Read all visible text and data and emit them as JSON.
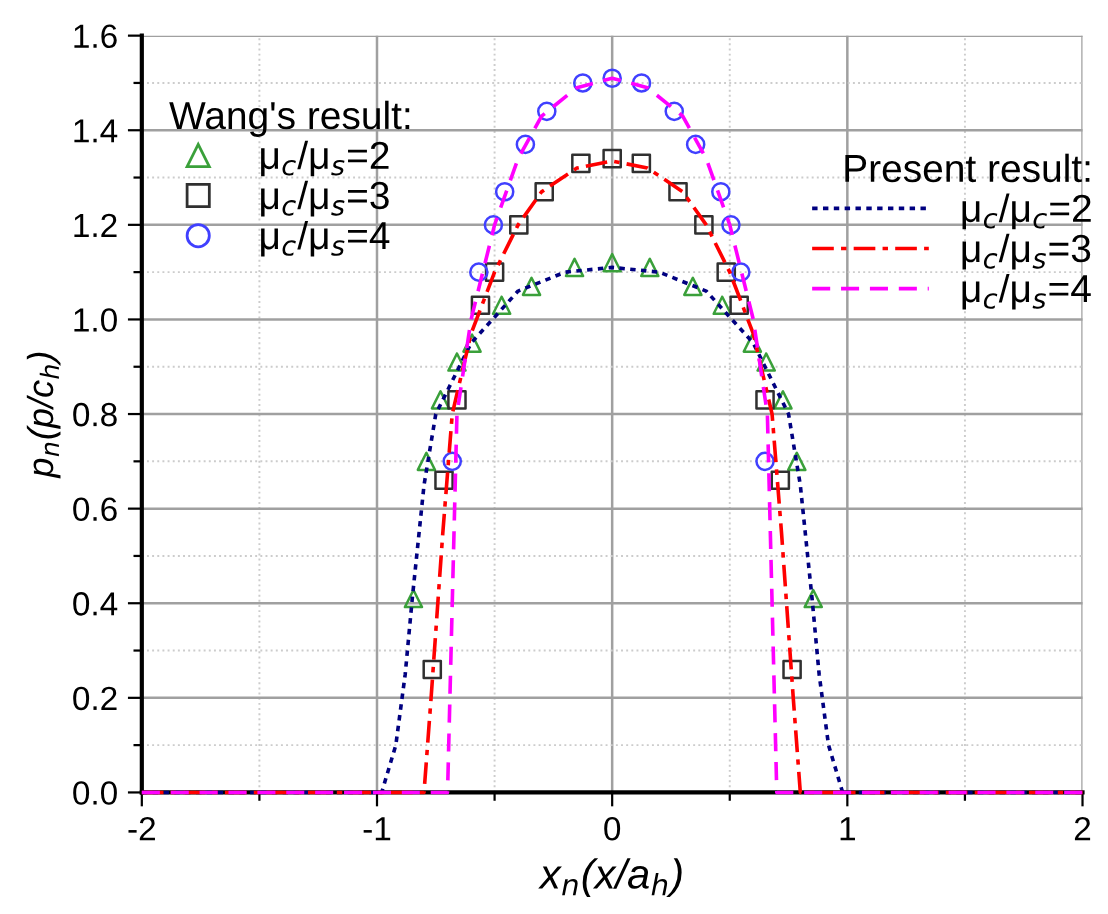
{
  "chart_data": {
    "type": "line",
    "xlabel": "x$_{n}$(x/a$_{h}$)",
    "ylabel": "p$_{n}$(p/c$_{h}$)",
    "annotations": [
      "Wang's result:",
      "Present result:"
    ],
    "xlim": [
      -2,
      2
    ],
    "ylim": [
      0,
      1.6
    ],
    "xticks": [
      -2,
      {
        "value": -1.5,
        "label": null
      },
      -1,
      {
        "value": -0.5,
        "label": null
      },
      0,
      {
        "value": 0.5,
        "label": null
      },
      1,
      {
        "value": 1.5,
        "label": null
      },
      2
    ],
    "yticks": [
      "0.0",
      {
        "value": 0.1,
        "label": null
      },
      {
        "value": 0.2,
        "label": "0.2"
      },
      {
        "value": 0.3,
        "label": null
      },
      {
        "value": 0.4,
        "label": "0.4"
      },
      {
        "value": 0.5,
        "label": null
      },
      {
        "value": 0.6,
        "label": "0.6"
      },
      {
        "value": 0.7,
        "label": null
      },
      {
        "value": 0.8,
        "label": "0.8"
      },
      {
        "value": 0.9,
        "label": null
      },
      {
        "value": 1.0,
        "label": "1.0"
      },
      {
        "value": 1.1,
        "label": null
      },
      {
        "value": 1.2,
        "label": "1.2"
      },
      {
        "value": 1.3,
        "label": null
      },
      {
        "value": 1.4,
        "label": "1.4"
      },
      {
        "value": 1.5,
        "label": null
      },
      {
        "value": 1.6,
        "label": "1.6"
      }
    ],
    "grid": true,
    "legend": "top left",
    "series": [
      {
        "name": "μ$_{c}$/μ$_{s}$=2",
        "type": "scatter",
        "marker": "triangle",
        "color": "#3aa03a",
        "x": [
          -0.845,
          -0.79,
          -0.73,
          -0.66,
          -0.596,
          -0.47,
          -0.343,
          -0.16,
          0,
          0.16,
          0.343,
          0.468,
          0.596,
          0.655,
          0.726,
          0.785,
          0.855
        ],
        "values": [
          0.41,
          0.7,
          0.83,
          0.91,
          0.95,
          1.03,
          1.07,
          1.11,
          1.12,
          1.11,
          1.07,
          1.03,
          0.95,
          0.91,
          0.83,
          0.7,
          0.41
        ]
      },
      {
        "name": "μ$_{c}$/μ$_{s}$=3",
        "type": "scatter",
        "marker": "square",
        "color": "#303030",
        "x": [
          -0.765,
          -0.715,
          -0.66,
          -0.56,
          -0.5,
          -0.397,
          -0.289,
          -0.133,
          0,
          0.124,
          0.28,
          0.39,
          0.485,
          0.54,
          0.65,
          0.715,
          0.765
        ],
        "values": [
          0.26,
          0.66,
          0.83,
          1.03,
          1.1,
          1.2,
          1.27,
          1.33,
          1.34,
          1.33,
          1.27,
          1.2,
          1.1,
          1.03,
          0.83,
          0.66,
          0.26
        ]
      },
      {
        "name": "μ$_{c}$/μ$_{s}$=4",
        "type": "scatter",
        "marker": "circle",
        "color": "#4040ff",
        "x": [
          -0.68,
          -0.567,
          -0.505,
          -0.457,
          -0.369,
          -0.278,
          -0.125,
          0,
          0.125,
          0.264,
          0.355,
          0.462,
          0.505,
          0.547,
          0.65
        ],
        "values": [
          0.7,
          1.1,
          1.2,
          1.27,
          1.37,
          1.44,
          1.5,
          1.51,
          1.5,
          1.44,
          1.37,
          1.27,
          1.2,
          1.1,
          0.7
        ]
      },
      {
        "name": "μ$_{c}$/μ$_{c}$=2",
        "line_style": "dotted",
        "color": "#000080",
        "x": [
          -2,
          -0.98,
          -0.92,
          -0.88,
          -0.85,
          -0.8,
          -0.75,
          -0.6,
          -0.4,
          -0.2,
          0,
          0.2,
          0.4,
          0.6,
          0.75,
          0.8,
          0.85,
          0.88,
          0.92,
          0.98,
          2
        ],
        "values": [
          0,
          0,
          0.1,
          0.25,
          0.41,
          0.65,
          0.8,
          0.95,
          1.06,
          1.1,
          1.11,
          1.1,
          1.06,
          0.95,
          0.8,
          0.65,
          0.41,
          0.25,
          0.1,
          0,
          0
        ]
      },
      {
        "name": "μ$_{c}$/μ$_{s}$=3",
        "line_style": "dashdot",
        "color": "#ff0000",
        "x": [
          -2,
          -0.8,
          -0.77,
          -0.72,
          -0.68,
          -0.6,
          -0.5,
          -0.4,
          -0.3,
          -0.15,
          0,
          0.15,
          0.3,
          0.4,
          0.5,
          0.6,
          0.68,
          0.72,
          0.77,
          0.8,
          2
        ],
        "values": [
          0,
          0,
          0.2,
          0.55,
          0.8,
          0.97,
          1.1,
          1.2,
          1.27,
          1.32,
          1.335,
          1.32,
          1.27,
          1.2,
          1.1,
          0.97,
          0.8,
          0.55,
          0.2,
          0,
          0
        ]
      },
      {
        "name": "μ$_{c}$/μ$_{s}$=4",
        "line_style": "dashed",
        "color": "#ff00ff",
        "x": [
          -2,
          -0.7,
          -0.68,
          -0.66,
          -0.6,
          -0.55,
          -0.5,
          -0.4,
          -0.3,
          -0.15,
          0,
          0.15,
          0.3,
          0.4,
          0.5,
          0.55,
          0.6,
          0.66,
          0.68,
          0.7,
          2
        ],
        "values": [
          0,
          0,
          0.4,
          0.8,
          1.0,
          1.1,
          1.2,
          1.34,
          1.43,
          1.49,
          1.51,
          1.49,
          1.43,
          1.34,
          1.2,
          1.1,
          1.0,
          0.8,
          0.4,
          0,
          0
        ]
      }
    ]
  }
}
